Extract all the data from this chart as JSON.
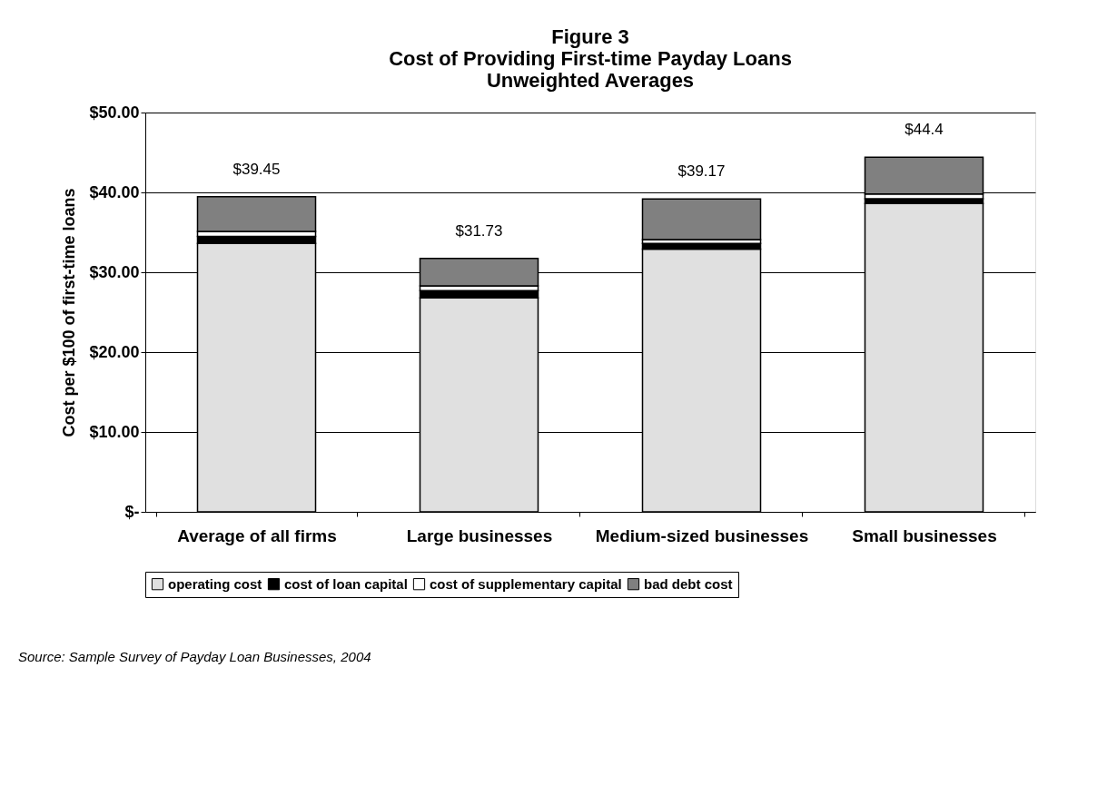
{
  "chart_data": {
    "type": "bar",
    "stacked": true,
    "title": "Figure 3\nCost of Providing First-time Payday Loans\nUnweighted Averages",
    "ylabel": "Cost per $100 of first-time loans",
    "categories": [
      "Average of all firms",
      "Large businesses",
      "Medium-sized businesses",
      "Small businesses"
    ],
    "series": [
      {
        "name": "operating cost",
        "color": "#e0e0e0",
        "values": [
          33.6,
          26.8,
          32.9,
          38.6
        ]
      },
      {
        "name": "cost of loan capital",
        "color": "#000000",
        "values": [
          0.9,
          0.9,
          0.7,
          0.6
        ]
      },
      {
        "name": "cost of supplementary capital",
        "color": "#ffffff",
        "values": [
          0.6,
          0.6,
          0.5,
          0.6
        ]
      },
      {
        "name": "bad debt cost",
        "color": "#808080",
        "values": [
          4.35,
          3.43,
          5.07,
          4.6
        ]
      }
    ],
    "totals": [
      "$39.45",
      "$31.73",
      "$39.17",
      "$44.4"
    ],
    "ylim": [
      0,
      50
    ],
    "yticks": [
      {
        "value": 0,
        "label": "$-"
      },
      {
        "value": 10,
        "label": "$10.00"
      },
      {
        "value": 20,
        "label": "$20.00"
      },
      {
        "value": 30,
        "label": "$30.00"
      },
      {
        "value": 40,
        "label": "$40.00"
      },
      {
        "value": 50,
        "label": "$50.00"
      }
    ],
    "grid": "y",
    "legend": "bottom",
    "annotations": [
      "Source: Sample Survey of Payday Loan Businesses, 2004"
    ]
  }
}
